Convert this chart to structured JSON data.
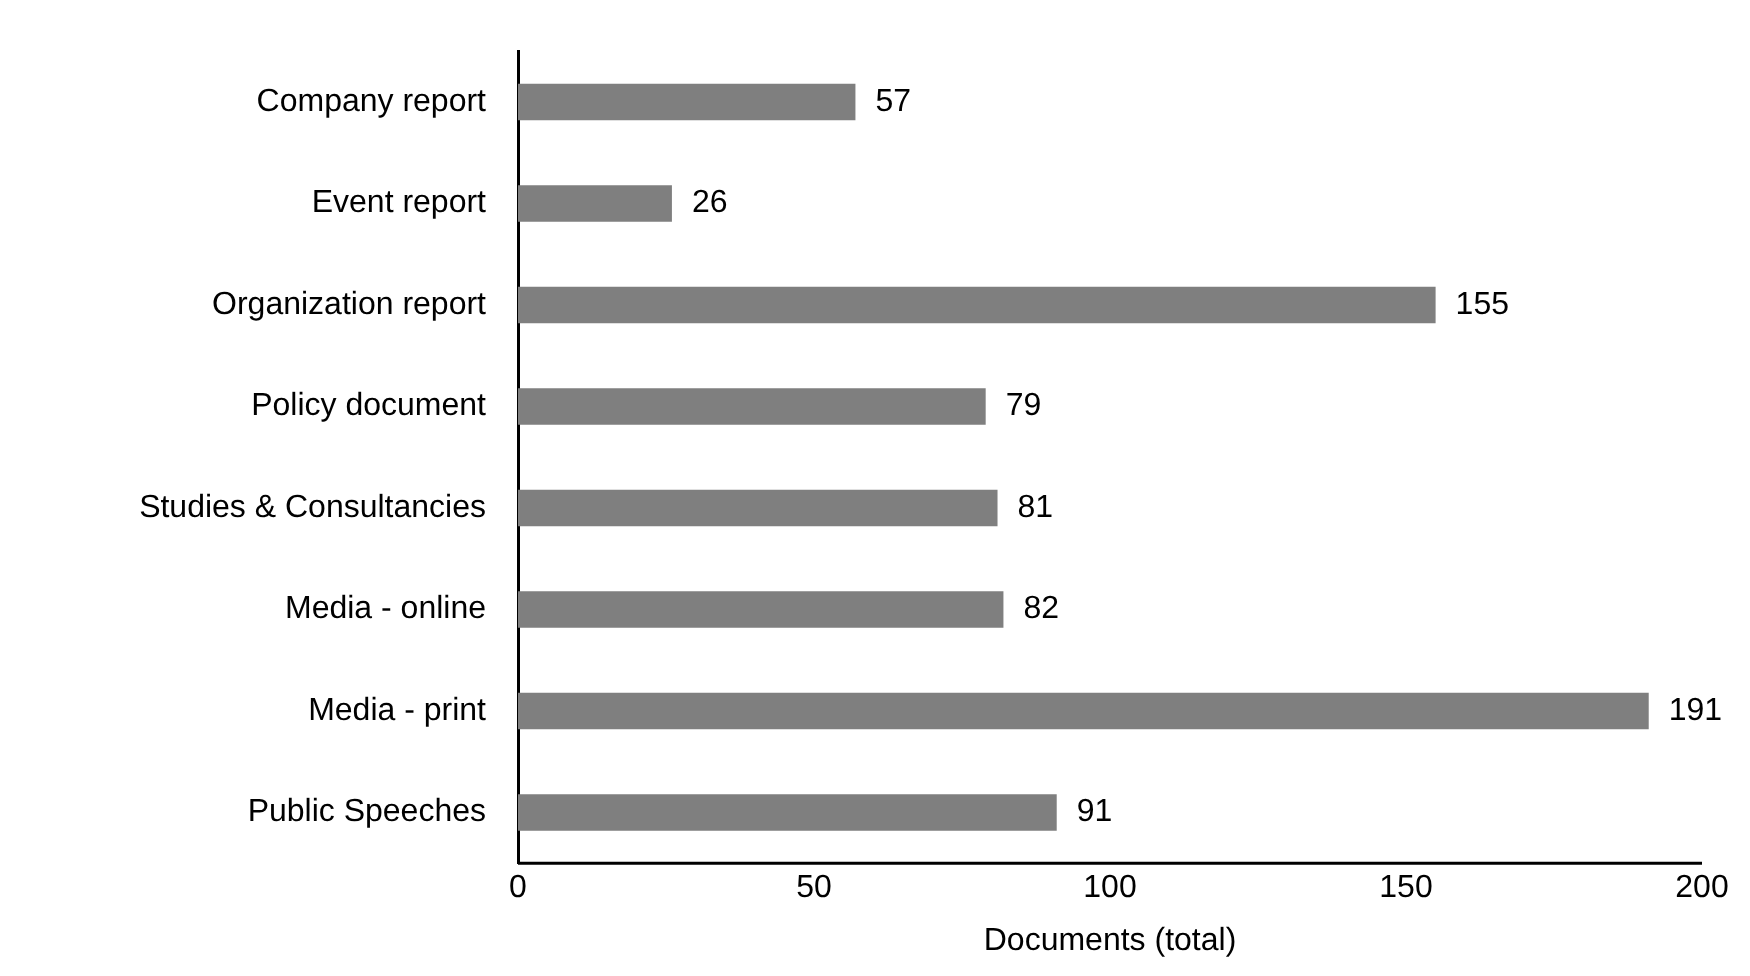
{
  "chart_data": {
    "type": "bar",
    "orientation": "horizontal",
    "categories": [
      "Company report",
      "Event report",
      "Organization report",
      "Policy document",
      "Studies & Consultancies",
      "Media - online",
      "Media - print",
      "Public Speeches"
    ],
    "values": [
      57,
      26,
      155,
      79,
      81,
      82,
      191,
      91
    ],
    "color": "#7f7f7f",
    "xlabel": "Documents (total)",
    "xlim": [
      0,
      200
    ],
    "xticks": [
      0,
      50,
      100,
      150,
      200
    ],
    "grid": false,
    "legend": false,
    "data_labels": true
  }
}
